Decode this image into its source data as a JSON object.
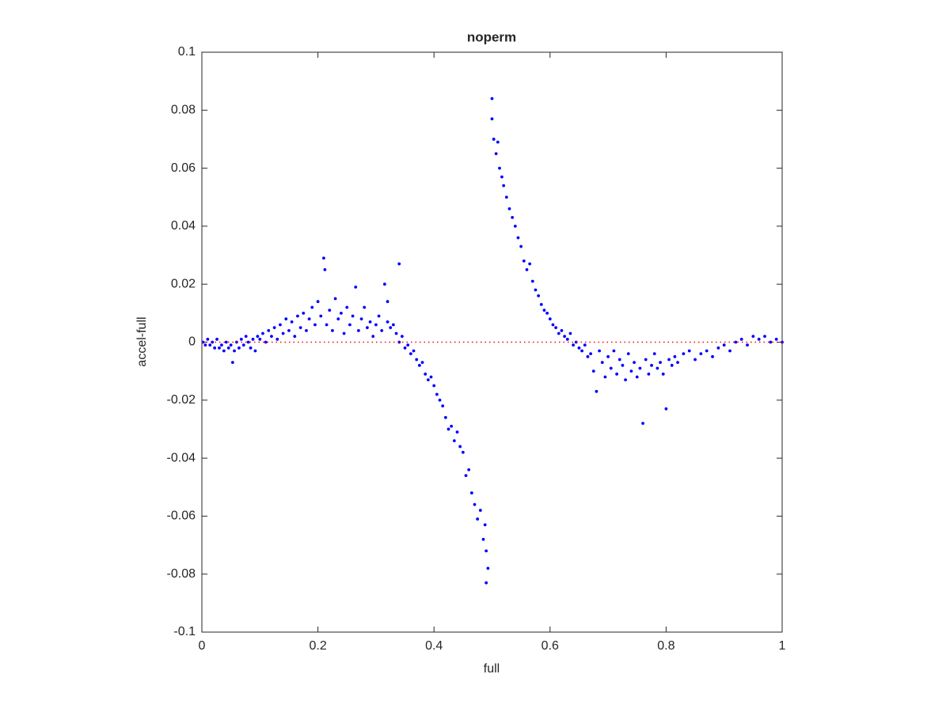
{
  "chart_data": {
    "type": "scatter",
    "title": "noperm",
    "x_label": "full",
    "y_label": "accel-full",
    "xlim": [
      0,
      1
    ],
    "ylim": [
      -0.1,
      0.1
    ],
    "xticks": [
      0,
      0.2,
      0.4,
      0.6,
      0.8,
      1
    ],
    "yticks": [
      -0.1,
      -0.08,
      -0.06,
      -0.04,
      -0.02,
      0,
      0.02,
      0.04,
      0.06,
      0.08,
      0.1
    ],
    "grid": false,
    "series": [
      {
        "type": "scatter",
        "color": "#0000ff",
        "x": [
          0.002,
          0.006,
          0.01,
          0.014,
          0.018,
          0.022,
          0.026,
          0.03,
          0.034,
          0.038,
          0.042,
          0.046,
          0.05,
          0.053,
          0.056,
          0.06,
          0.064,
          0.068,
          0.072,
          0.076,
          0.08,
          0.084,
          0.088,
          0.092,
          0.096,
          0.1,
          0.105,
          0.11,
          0.115,
          0.12,
          0.125,
          0.13,
          0.135,
          0.14,
          0.145,
          0.15,
          0.155,
          0.16,
          0.165,
          0.17,
          0.175,
          0.18,
          0.185,
          0.19,
          0.195,
          0.2,
          0.205,
          0.21,
          0.212,
          0.215,
          0.22,
          0.225,
          0.23,
          0.235,
          0.24,
          0.245,
          0.25,
          0.255,
          0.26,
          0.265,
          0.27,
          0.275,
          0.28,
          0.285,
          0.29,
          0.295,
          0.3,
          0.305,
          0.31,
          0.315,
          0.32,
          0.32,
          0.325,
          0.33,
          0.335,
          0.34,
          0.34,
          0.345,
          0.35,
          0.355,
          0.36,
          0.365,
          0.37,
          0.375,
          0.38,
          0.385,
          0.39,
          0.395,
          0.4,
          0.405,
          0.41,
          0.415,
          0.42,
          0.425,
          0.43,
          0.435,
          0.44,
          0.445,
          0.45,
          0.455,
          0.46,
          0.465,
          0.47,
          0.475,
          0.48,
          0.485,
          0.488,
          0.49,
          0.493,
          0.49,
          0.5,
          0.5,
          0.503,
          0.507,
          0.51,
          0.513,
          0.517,
          0.52,
          0.525,
          0.53,
          0.535,
          0.54,
          0.545,
          0.55,
          0.555,
          0.56,
          0.565,
          0.57,
          0.575,
          0.58,
          0.585,
          0.59,
          0.595,
          0.6,
          0.605,
          0.61,
          0.615,
          0.62,
          0.625,
          0.63,
          0.635,
          0.64,
          0.645,
          0.65,
          0.655,
          0.66,
          0.665,
          0.67,
          0.675,
          0.68,
          0.685,
          0.69,
          0.695,
          0.7,
          0.705,
          0.71,
          0.715,
          0.72,
          0.725,
          0.73,
          0.735,
          0.74,
          0.745,
          0.75,
          0.755,
          0.76,
          0.765,
          0.77,
          0.775,
          0.78,
          0.785,
          0.79,
          0.795,
          0.8,
          0.805,
          0.81,
          0.815,
          0.82,
          0.83,
          0.84,
          0.85,
          0.86,
          0.87,
          0.88,
          0.89,
          0.9,
          0.91,
          0.92,
          0.93,
          0.94,
          0.95,
          0.96,
          0.97,
          0.98,
          0.99,
          1.0
        ],
        "values": [
          0.0,
          -0.001,
          0.001,
          -0.001,
          0.0,
          -0.002,
          0.001,
          -0.002,
          -0.001,
          -0.003,
          0.0,
          -0.002,
          -0.001,
          -0.007,
          -0.003,
          0.0,
          -0.002,
          0.001,
          -0.001,
          0.002,
          0.0,
          -0.002,
          0.001,
          -0.003,
          0.002,
          0.001,
          0.003,
          0.0,
          0.004,
          0.002,
          0.005,
          0.001,
          0.006,
          0.003,
          0.008,
          0.004,
          0.007,
          0.002,
          0.009,
          0.005,
          0.01,
          0.004,
          0.008,
          0.012,
          0.006,
          0.014,
          0.009,
          0.029,
          0.025,
          0.006,
          0.011,
          0.004,
          0.015,
          0.008,
          0.01,
          0.003,
          0.012,
          0.006,
          0.009,
          0.019,
          0.004,
          0.008,
          0.012,
          0.005,
          0.007,
          0.002,
          0.006,
          0.009,
          0.004,
          0.02,
          0.007,
          0.014,
          0.005,
          0.006,
          0.003,
          0.027,
          0.0,
          0.002,
          -0.002,
          -0.001,
          -0.004,
          -0.003,
          -0.006,
          -0.008,
          -0.007,
          -0.011,
          -0.013,
          -0.012,
          -0.015,
          -0.018,
          -0.02,
          -0.022,
          -0.026,
          -0.03,
          -0.029,
          -0.034,
          -0.031,
          -0.036,
          -0.038,
          -0.046,
          -0.044,
          -0.052,
          -0.056,
          -0.061,
          -0.058,
          -0.068,
          -0.063,
          -0.072,
          -0.078,
          -0.083,
          0.084,
          0.077,
          0.07,
          0.065,
          0.069,
          0.06,
          0.057,
          0.054,
          0.05,
          0.046,
          0.043,
          0.04,
          0.036,
          0.033,
          0.028,
          0.025,
          0.027,
          0.021,
          0.018,
          0.016,
          0.013,
          0.011,
          0.01,
          0.008,
          0.006,
          0.005,
          0.003,
          0.004,
          0.002,
          0.001,
          0.003,
          -0.001,
          0.0,
          -0.002,
          -0.003,
          -0.001,
          -0.005,
          -0.004,
          -0.01,
          -0.017,
          -0.003,
          -0.007,
          -0.012,
          -0.005,
          -0.009,
          -0.003,
          -0.011,
          -0.006,
          -0.008,
          -0.013,
          -0.004,
          -0.01,
          -0.007,
          -0.012,
          -0.009,
          -0.028,
          -0.006,
          -0.011,
          -0.008,
          -0.004,
          -0.009,
          -0.007,
          -0.011,
          -0.023,
          -0.006,
          -0.008,
          -0.005,
          -0.007,
          -0.004,
          -0.003,
          -0.006,
          -0.004,
          -0.003,
          -0.005,
          -0.002,
          -0.001,
          -0.003,
          0.0,
          0.001,
          -0.001,
          0.002,
          0.001,
          0.002,
          0.0,
          0.001,
          0.0
        ]
      },
      {
        "type": "line",
        "style": "dotted",
        "color": "#ff0000",
        "x": [
          0,
          1
        ],
        "values": [
          0,
          0
        ]
      }
    ]
  }
}
